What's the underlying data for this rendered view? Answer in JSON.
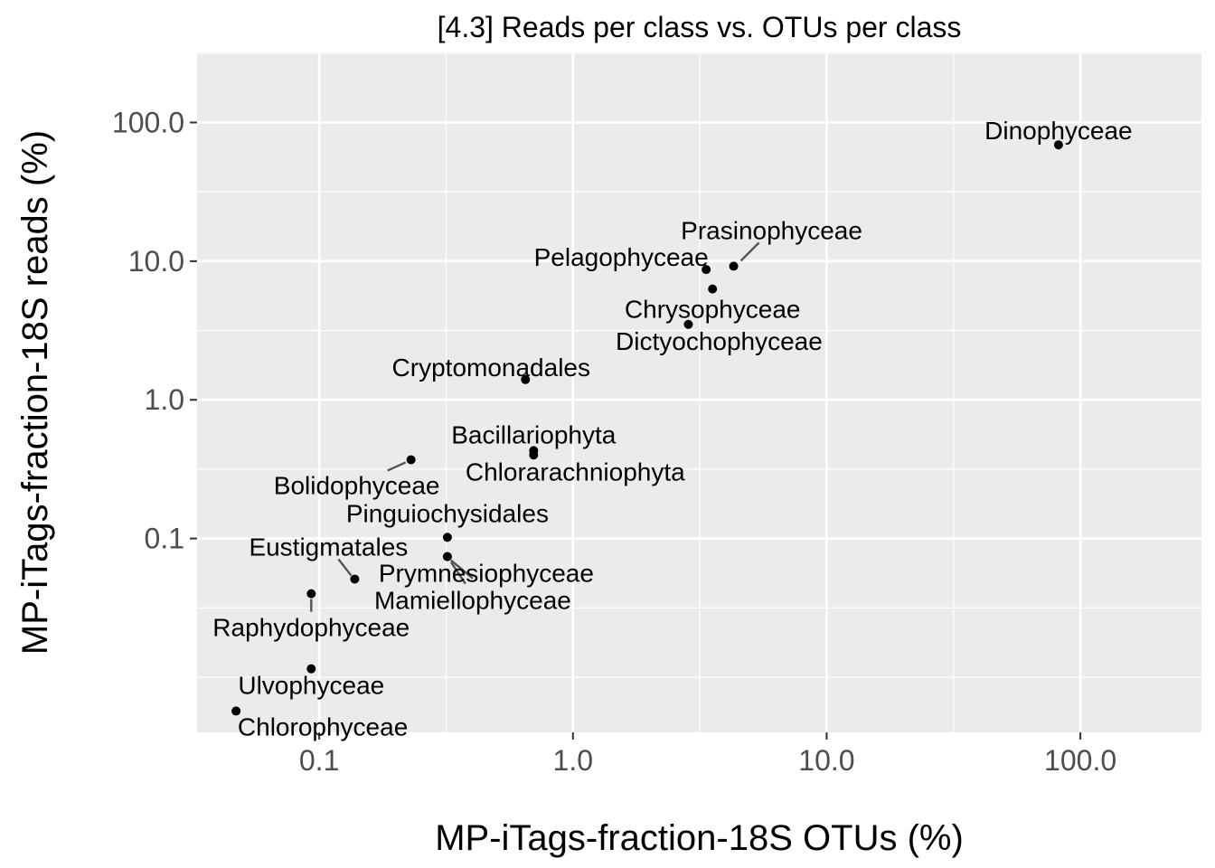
{
  "chart_data": {
    "type": "scatter",
    "title": "[4.3] Reads per class vs. OTUs per class",
    "xlabel": "MP-iTags-fraction-18S OTUs (%)",
    "ylabel": "MP-iTags-fraction-18S reads (%)",
    "x_scale": "log10",
    "y_scale": "log10",
    "xlim": [
      0.033,
      300
    ],
    "ylim": [
      0.004,
      320
    ],
    "x_ticks": [
      {
        "value": 0.1,
        "label": "0.1"
      },
      {
        "value": 1,
        "label": "1.0"
      },
      {
        "value": 10,
        "label": "10.0"
      },
      {
        "value": 100,
        "label": "100.0"
      }
    ],
    "y_ticks": [
      {
        "value": 0.1,
        "label": "0.1"
      },
      {
        "value": 1,
        "label": "1.0"
      },
      {
        "value": 10,
        "label": "10.0"
      },
      {
        "value": 100,
        "label": "100.0"
      }
    ],
    "grid": true,
    "legend": "none",
    "colors": {
      "panel": "#ebebeb",
      "grid": "#ffffff",
      "point": "#000000",
      "segment": "#555555"
    },
    "points": [
      {
        "label": "Dinophyceae",
        "x": 82.0,
        "y": 69.0
      },
      {
        "label": "Prasinophyceae",
        "x": 4.3,
        "y": 9.2
      },
      {
        "label": "Pelagophyceae",
        "x": 3.35,
        "y": 8.7
      },
      {
        "label": "Chrysophyceae",
        "x": 3.55,
        "y": 6.3
      },
      {
        "label": "Dictyochophyceae",
        "x": 2.85,
        "y": 3.5
      },
      {
        "label": "Cryptomonadales",
        "x": 0.65,
        "y": 1.4
      },
      {
        "label": "Bacillariophyta",
        "x": 0.7,
        "y": 0.43
      },
      {
        "label": "Chlorarachniophyta",
        "x": 0.7,
        "y": 0.4
      },
      {
        "label": "Bolidophyceae",
        "x": 0.23,
        "y": 0.37
      },
      {
        "label": "Pinguiochysidales",
        "x": 0.32,
        "y": 0.102
      },
      {
        "label": "Prymnesiophyceae",
        "x": 0.32,
        "y": 0.074
      },
      {
        "label": "Mamiellophyceae",
        "x": 0.32,
        "y": 0.074
      },
      {
        "label": "Eustigmatales",
        "x": 0.138,
        "y": 0.051
      },
      {
        "label": "Raphydophyceae",
        "x": 0.093,
        "y": 0.04
      },
      {
        "label": "Ulvophyceae",
        "x": 0.093,
        "y": 0.0115
      },
      {
        "label": "Chlorophyceae",
        "x": 0.047,
        "y": 0.0057
      }
    ]
  }
}
